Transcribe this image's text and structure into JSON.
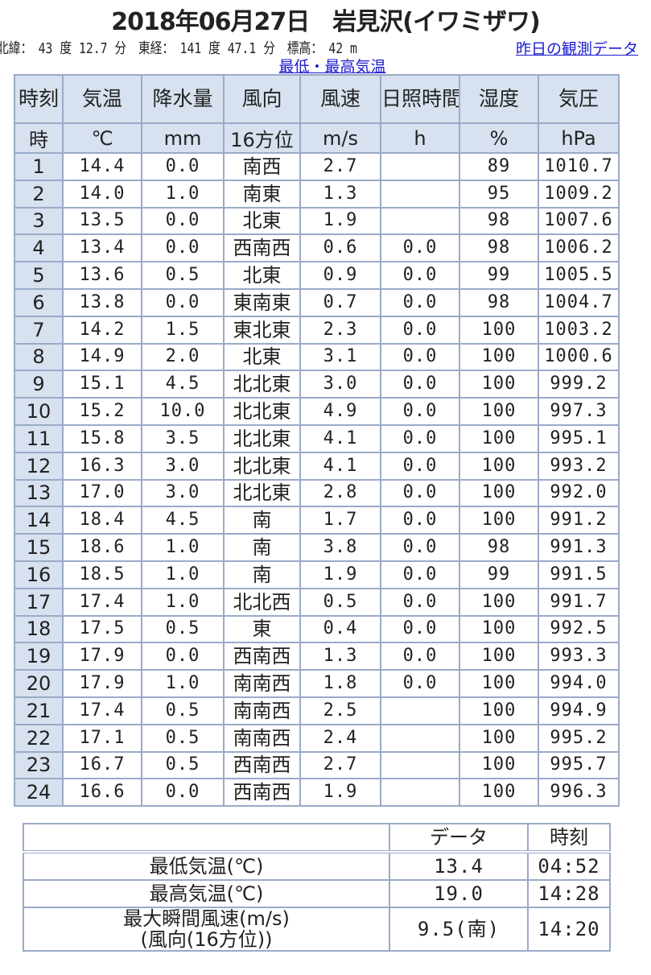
{
  "title": "2018年06月27日　岩見沢(イワミザワ)",
  "meta": "北緯：　43 度 12.7 分　東経：　141 度 47.1 分　標高：　42 m",
  "yesterday_link": "昨日の観測データ",
  "minmax_link": "最低・最高気温",
  "headers": [
    "時刻",
    "気温",
    "降水量",
    "風向",
    "風速",
    "日照時間",
    "湿度",
    "気圧"
  ],
  "units": [
    "時",
    "℃",
    "mm",
    "16方位",
    "m/s",
    "h",
    "%",
    "hPa"
  ],
  "rows": [
    [
      "1",
      "14.4",
      "0.0",
      "南西",
      "2.7",
      "",
      "89",
      "1010.7"
    ],
    [
      "2",
      "14.0",
      "1.0",
      "南東",
      "1.3",
      "",
      "95",
      "1009.2"
    ],
    [
      "3",
      "13.5",
      "0.0",
      "北東",
      "1.9",
      "",
      "98",
      "1007.6"
    ],
    [
      "4",
      "13.4",
      "0.0",
      "西南西",
      "0.6",
      "0.0",
      "98",
      "1006.2"
    ],
    [
      "5",
      "13.6",
      "0.5",
      "北東",
      "0.9",
      "0.0",
      "99",
      "1005.5"
    ],
    [
      "6",
      "13.8",
      "0.0",
      "東南東",
      "0.7",
      "0.0",
      "98",
      "1004.7"
    ],
    [
      "7",
      "14.2",
      "1.5",
      "東北東",
      "2.3",
      "0.0",
      "100",
      "1003.2"
    ],
    [
      "8",
      "14.9",
      "2.0",
      "北東",
      "3.1",
      "0.0",
      "100",
      "1000.6"
    ],
    [
      "9",
      "15.1",
      "4.5",
      "北北東",
      "3.0",
      "0.0",
      "100",
      "999.2"
    ],
    [
      "10",
      "15.2",
      "10.0",
      "北北東",
      "4.9",
      "0.0",
      "100",
      "997.3"
    ],
    [
      "11",
      "15.8",
      "3.5",
      "北北東",
      "4.1",
      "0.0",
      "100",
      "995.1"
    ],
    [
      "12",
      "16.3",
      "3.0",
      "北北東",
      "4.1",
      "0.0",
      "100",
      "993.2"
    ],
    [
      "13",
      "17.0",
      "3.0",
      "北北東",
      "2.8",
      "0.0",
      "100",
      "992.0"
    ],
    [
      "14",
      "18.4",
      "4.5",
      "南",
      "1.7",
      "0.0",
      "100",
      "991.2"
    ],
    [
      "15",
      "18.6",
      "1.0",
      "南",
      "3.8",
      "0.0",
      "98",
      "991.3"
    ],
    [
      "16",
      "18.5",
      "1.0",
      "南",
      "1.9",
      "0.0",
      "99",
      "991.5"
    ],
    [
      "17",
      "17.4",
      "1.0",
      "北北西",
      "0.5",
      "0.0",
      "100",
      "991.7"
    ],
    [
      "18",
      "17.5",
      "0.5",
      "東",
      "0.4",
      "0.0",
      "100",
      "992.5"
    ],
    [
      "19",
      "17.9",
      "0.0",
      "西南西",
      "1.3",
      "0.0",
      "100",
      "993.3"
    ],
    [
      "20",
      "17.9",
      "1.0",
      "南南西",
      "1.8",
      "0.0",
      "100",
      "994.0"
    ],
    [
      "21",
      "17.4",
      "0.5",
      "南南西",
      "2.5",
      "",
      "100",
      "994.9"
    ],
    [
      "22",
      "17.1",
      "0.5",
      "南南西",
      "2.4",
      "",
      "100",
      "995.2"
    ],
    [
      "23",
      "16.7",
      "0.5",
      "西南西",
      "2.7",
      "",
      "100",
      "995.7"
    ],
    [
      "24",
      "16.6",
      "0.0",
      "西南西",
      "1.9",
      "",
      "100",
      "996.3"
    ]
  ],
  "summary": {
    "headers": [
      "",
      "データ",
      "時刻"
    ],
    "rows": [
      [
        "最低気温(℃)",
        "13.4",
        "04:52"
      ],
      [
        "最高気温(℃)",
        "19.0",
        "14:28"
      ],
      [
        "最大瞬間風速(m/s)\n(風向(16方位))",
        "9.5(南)",
        "14:20"
      ]
    ]
  }
}
